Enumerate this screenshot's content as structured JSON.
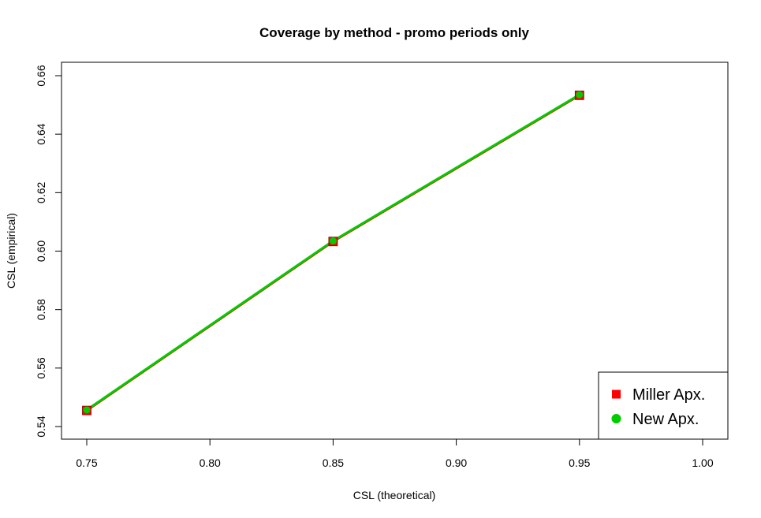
{
  "chart_data": {
    "type": "line",
    "title": "Coverage by method - promo periods only",
    "xlabel": "CSL (theoretical)",
    "ylabel": "CSL (empirical)",
    "xlim": [
      0.75,
      1.0
    ],
    "ylim": [
      0.54,
      0.66
    ],
    "x_ticks": [
      "0.75",
      "0.80",
      "0.85",
      "0.90",
      "0.95",
      "1.00"
    ],
    "y_ticks": [
      "0.54",
      "0.56",
      "0.58",
      "0.60",
      "0.62",
      "0.64",
      "0.66"
    ],
    "x": [
      0.75,
      0.85,
      0.95
    ],
    "series": [
      {
        "name": "Miller Apx.",
        "values": [
          0.5455,
          0.6033,
          0.6533
        ],
        "color": "#ff0000",
        "marker": "square"
      },
      {
        "name": "New Apx.",
        "values": [
          0.5457,
          0.6035,
          0.6535
        ],
        "color": "#00cd00",
        "marker": "circle"
      }
    ],
    "legend_position": "bottom-right",
    "grid": false
  }
}
